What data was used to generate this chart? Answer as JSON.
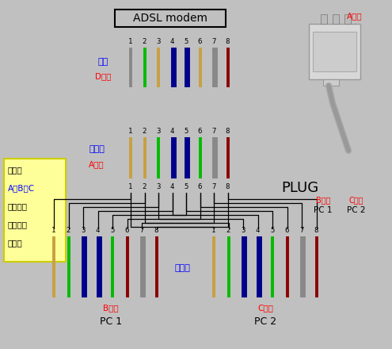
{
  "bg_color": "#c0c0c0",
  "title": "ADSL modem",
  "d_colors": [
    "#888888",
    "#00bb00",
    "#c8a040",
    "#00008b",
    "#00008b",
    "#c8a040",
    "#888888",
    "#8b0000"
  ],
  "a_colors": [
    "#c8a040",
    "#c8a040",
    "#00bb00",
    "#00008b",
    "#00008b",
    "#00bb00",
    "#888888",
    "#8b0000"
  ],
  "bc_colors": [
    "#c8a040",
    "#00bb00",
    "#00008b",
    "#00008b",
    "#00bb00",
    "#8b0000",
    "#888888",
    "#8b0000"
  ],
  "note_lines": [
    "注意：",
    "A、B、C",
    "三个端口",
    "色线排列",
    "要一致"
  ]
}
